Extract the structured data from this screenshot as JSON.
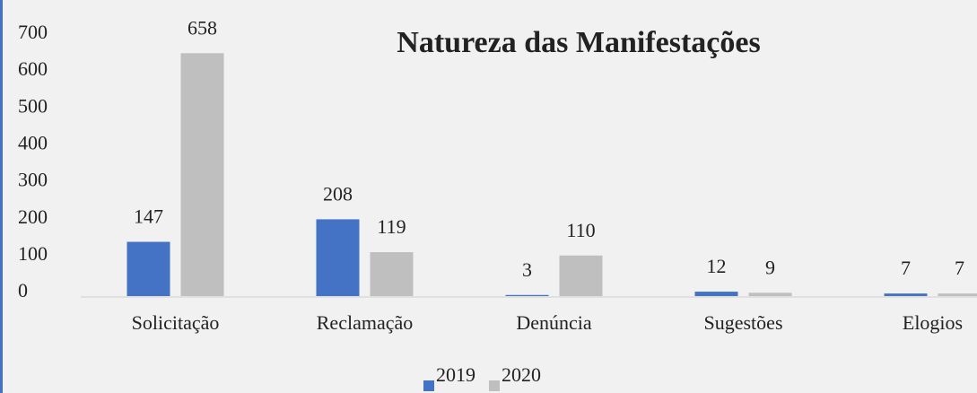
{
  "chart_data": {
    "type": "bar",
    "title": "Natureza das Manifestações",
    "categories": [
      "Solicitação",
      "Reclamação",
      "Denúncia",
      "Sugestões",
      "Elogios"
    ],
    "series": [
      {
        "name": "2019",
        "color": "#4472c4",
        "values": [
          147,
          208,
          3,
          12,
          7
        ]
      },
      {
        "name": "2020",
        "color": "#bfbfbf",
        "values": [
          658,
          119,
          110,
          9,
          7
        ]
      }
    ],
    "ylim": [
      0,
      700
    ],
    "yticks": [
      0,
      100,
      200,
      300,
      400,
      500,
      600,
      700
    ],
    "grid": false,
    "legend": "bottom"
  }
}
